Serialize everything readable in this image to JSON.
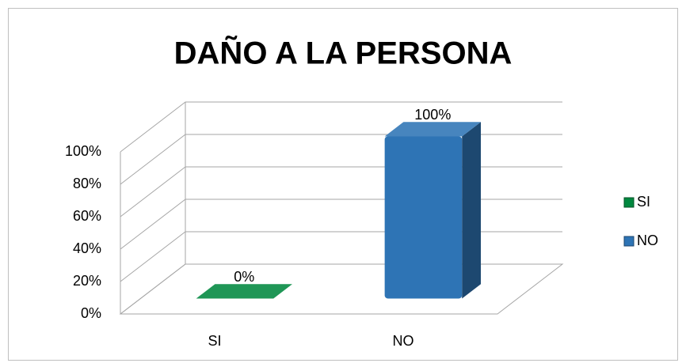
{
  "chart_data": {
    "type": "bar3d",
    "title": "DAÑO A LA PERSONA",
    "categories": [
      "SI",
      "NO"
    ],
    "values": [
      0,
      100
    ],
    "value_labels": [
      "0%",
      "100%"
    ],
    "colors": [
      "#00883f",
      "#2e74b5"
    ],
    "ylim": [
      0,
      100
    ],
    "yticks": [
      {
        "value": 0,
        "label": "0%"
      },
      {
        "value": 20,
        "label": "20%"
      },
      {
        "value": 40,
        "label": "40%"
      },
      {
        "value": 60,
        "label": "60%"
      },
      {
        "value": 80,
        "label": "80%"
      },
      {
        "value": 100,
        "label": "100%"
      }
    ],
    "grid": true,
    "legend": "right"
  }
}
